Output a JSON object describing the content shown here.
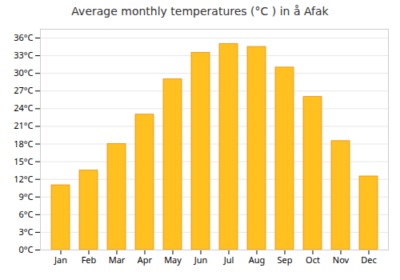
{
  "chart_data": {
    "type": "bar",
    "title": "Average monthly temperatures (°C ) in å Afak",
    "categories": [
      "Jan",
      "Feb",
      "Mar",
      "Apr",
      "May",
      "Jun",
      "Jul",
      "Aug",
      "Sep",
      "Oct",
      "Nov",
      "Dec"
    ],
    "values": [
      11,
      13.5,
      18,
      23,
      29,
      33.5,
      35,
      34.5,
      31,
      26,
      18.5,
      12.5
    ],
    "color": "#FFC020",
    "ylim": [
      0,
      37.5
    ],
    "yticks": [
      {
        "value": 0,
        "label": "0°C"
      },
      {
        "value": 3,
        "label": "3°C"
      },
      {
        "value": 6,
        "label": "6°C"
      },
      {
        "value": 9,
        "label": "9°C"
      },
      {
        "value": 12,
        "label": "12°C"
      },
      {
        "value": 15,
        "label": "15°C"
      },
      {
        "value": 18,
        "label": "18°C"
      },
      {
        "value": 21,
        "label": "21°C"
      },
      {
        "value": 24,
        "label": "24°C"
      },
      {
        "value": 27,
        "label": "27°C"
      },
      {
        "value": 30,
        "label": "30°C"
      },
      {
        "value": 33,
        "label": "33°C"
      },
      {
        "value": 36,
        "label": "36°C"
      }
    ],
    "grid": true
  }
}
